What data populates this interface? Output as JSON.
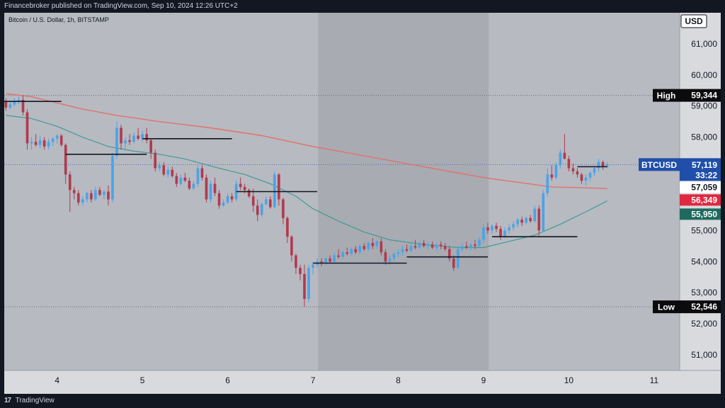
{
  "header": {
    "publisher_line": "Financebroker published on TradingView.com, Sep 10, 2024 12:26 UTC+2"
  },
  "footer": {
    "logo_text": "TradingView"
  },
  "colors": {
    "bull": "#4aa3e8",
    "bear": "#b03a4e",
    "ma_slow": "#e4716a",
    "ma_fast": "#3f9b94",
    "level_line": "#131722",
    "weekend_shade": "#a8abb2",
    "axis_bg": "#d8dade",
    "high_low_label_bg": "#0b0b0e",
    "btc_label_bg": "#1f4fa8",
    "ma_slow_label_bg": "#e02840",
    "ma_fast_label_bg": "#1f6a5e"
  },
  "chart_data": {
    "type": "candlestick",
    "symbol": "Bitcoin / U.S. Dollar, 1h, BITSTAMP",
    "currency": "USD",
    "xlabel": "",
    "ylabel": "",
    "ylim": [
      50500,
      62000
    ],
    "xlim": [
      3.38,
      11.3
    ],
    "yticks": [
      "51,000",
      "52,000",
      "53,000",
      "54,000",
      "55,000",
      "56,000",
      "57,000",
      "58,000",
      "59,000",
      "60,000",
      "61,000"
    ],
    "xticks": [
      "4",
      "5",
      "6",
      "7",
      "8",
      "9",
      "10",
      "11"
    ],
    "grid": false,
    "shaded_range": [
      7.06,
      9.06
    ],
    "high": {
      "label": "High",
      "value": 59344,
      "text": "59,344"
    },
    "low": {
      "label": "Low",
      "value": 52546,
      "text": "52,546"
    },
    "last_price": {
      "label": "BTCUSD",
      "value": 57119,
      "text": "57,119",
      "countdown": "33:22",
      "secondary": "57,059"
    },
    "ma_slow_last": {
      "value": 56349,
      "text": "56,349"
    },
    "ma_fast_last": {
      "value": 55950,
      "text": "55,950"
    },
    "candles": [
      [
        3.4,
        59150,
        59250,
        58850,
        58950
      ],
      [
        3.45,
        58950,
        59150,
        58900,
        59050
      ],
      [
        3.5,
        59050,
        59250,
        59000,
        59150
      ],
      [
        3.55,
        59150,
        59300,
        59050,
        59200
      ],
      [
        3.6,
        59200,
        59344,
        58700,
        58800
      ],
      [
        3.65,
        58800,
        58900,
        57600,
        57800
      ],
      [
        3.7,
        57800,
        58000,
        57600,
        57850
      ],
      [
        3.75,
        57850,
        58100,
        57700,
        57750
      ],
      [
        3.8,
        57750,
        58050,
        57650,
        57900
      ],
      [
        3.85,
        57900,
        58000,
        57600,
        57700
      ],
      [
        3.9,
        57700,
        57950,
        57600,
        57850
      ],
      [
        3.95,
        57850,
        58000,
        57700,
        57950
      ],
      [
        4.0,
        57950,
        58100,
        57800,
        58050
      ],
      [
        4.05,
        58050,
        58100,
        57700,
        57750
      ],
      [
        4.1,
        57750,
        57800,
        56500,
        56800
      ],
      [
        4.15,
        56800,
        56900,
        55600,
        56300
      ],
      [
        4.2,
        56300,
        56400,
        56000,
        56200
      ],
      [
        4.25,
        56200,
        56300,
        55800,
        55900
      ],
      [
        4.3,
        55900,
        56100,
        55800,
        56000
      ],
      [
        4.35,
        56000,
        56250,
        55900,
        56200
      ],
      [
        4.4,
        56200,
        56300,
        55900,
        56000
      ],
      [
        4.45,
        56000,
        56400,
        55950,
        56300
      ],
      [
        4.5,
        56300,
        56400,
        56100,
        56150
      ],
      [
        4.55,
        56150,
        56300,
        56000,
        56250
      ],
      [
        4.6,
        56250,
        56450,
        55800,
        56000
      ],
      [
        4.65,
        56000,
        57500,
        55900,
        57400
      ],
      [
        4.7,
        57400,
        58500,
        57300,
        58300
      ],
      [
        4.75,
        58300,
        58400,
        57600,
        57800
      ],
      [
        4.8,
        57800,
        58000,
        57600,
        57900
      ],
      [
        4.85,
        57900,
        58100,
        57750,
        57850
      ],
      [
        4.9,
        57850,
        58150,
        57800,
        58050
      ],
      [
        4.95,
        58050,
        58300,
        57900,
        57950
      ],
      [
        5.0,
        57950,
        58200,
        57850,
        58100
      ],
      [
        5.05,
        58100,
        58300,
        57800,
        57900
      ],
      [
        5.1,
        57900,
        57950,
        57300,
        57500
      ],
      [
        5.15,
        57500,
        57600,
        56900,
        57000
      ],
      [
        5.2,
        57000,
        57200,
        56900,
        57100
      ],
      [
        5.25,
        57100,
        57200,
        56750,
        56800
      ],
      [
        5.3,
        56800,
        57050,
        56700,
        56950
      ],
      [
        5.35,
        56950,
        57050,
        56700,
        56750
      ],
      [
        5.4,
        56750,
        56850,
        56400,
        56500
      ],
      [
        5.45,
        56500,
        56800,
        56450,
        56700
      ],
      [
        5.5,
        56700,
        56850,
        56550,
        56600
      ],
      [
        5.55,
        56600,
        56700,
        56300,
        56350
      ],
      [
        5.6,
        56350,
        56600,
        56300,
        56500
      ],
      [
        5.65,
        56500,
        57100,
        56400,
        57000
      ],
      [
        5.7,
        57000,
        57100,
        56600,
        56700
      ],
      [
        5.75,
        56700,
        56800,
        55900,
        56000
      ],
      [
        5.8,
        56000,
        56600,
        55900,
        56500
      ],
      [
        5.85,
        56500,
        56700,
        56100,
        56200
      ],
      [
        5.9,
        56200,
        56300,
        55700,
        55800
      ],
      [
        5.95,
        55800,
        56000,
        55750,
        55900
      ],
      [
        6.0,
        55900,
        56200,
        55850,
        56100
      ],
      [
        6.05,
        56100,
        56200,
        55900,
        56000
      ],
      [
        6.1,
        56000,
        56600,
        55950,
        56500
      ],
      [
        6.15,
        56500,
        56700,
        56300,
        56400
      ],
      [
        6.2,
        56400,
        56500,
        56200,
        56300
      ],
      [
        6.25,
        56300,
        56350,
        56050,
        56100
      ],
      [
        6.3,
        56100,
        56350,
        55600,
        55800
      ],
      [
        6.35,
        55800,
        56000,
        55300,
        55500
      ],
      [
        6.4,
        55500,
        55900,
        55450,
        55850
      ],
      [
        6.45,
        55850,
        56100,
        55800,
        56000
      ],
      [
        6.5,
        56000,
        56100,
        55700,
        55750
      ],
      [
        6.55,
        55750,
        56900,
        55700,
        56800
      ],
      [
        6.6,
        56800,
        56850,
        55800,
        56000
      ],
      [
        6.65,
        56000,
        56050,
        55200,
        55400
      ],
      [
        6.7,
        55400,
        55450,
        54600,
        54800
      ],
      [
        6.75,
        54800,
        54850,
        54000,
        54200
      ],
      [
        6.8,
        54200,
        54250,
        53600,
        53800
      ],
      [
        6.85,
        53800,
        53900,
        53400,
        53600
      ],
      [
        6.9,
        53600,
        53900,
        52546,
        52800
      ],
      [
        6.95,
        52800,
        53900,
        52700,
        53800
      ],
      [
        7.0,
        53800,
        54000,
        53600,
        53900
      ],
      [
        7.05,
        53900,
        54100,
        53800,
        54000
      ],
      [
        7.1,
        54000,
        54100,
        53850,
        53950
      ],
      [
        7.15,
        53950,
        54150,
        53900,
        54100
      ],
      [
        7.2,
        54100,
        54200,
        53950,
        54000
      ],
      [
        7.25,
        54000,
        54300,
        53950,
        54200
      ],
      [
        7.3,
        54200,
        54400,
        54100,
        54150
      ],
      [
        7.35,
        54150,
        54350,
        54100,
        54300
      ],
      [
        7.4,
        54300,
        54450,
        54200,
        54250
      ],
      [
        7.45,
        54250,
        54450,
        54200,
        54400
      ],
      [
        7.5,
        54400,
        54500,
        54250,
        54300
      ],
      [
        7.55,
        54300,
        54550,
        54250,
        54500
      ],
      [
        7.6,
        54500,
        54600,
        54350,
        54400
      ],
      [
        7.65,
        54400,
        54650,
        54350,
        54600
      ],
      [
        7.7,
        54600,
        54750,
        54400,
        54500
      ],
      [
        7.75,
        54500,
        54700,
        54400,
        54650
      ],
      [
        7.8,
        54650,
        54750,
        54200,
        54300
      ],
      [
        7.85,
        54300,
        54400,
        53900,
        54000
      ],
      [
        7.9,
        54000,
        54200,
        53900,
        54100
      ],
      [
        7.95,
        54100,
        54300,
        54000,
        54250
      ],
      [
        8.0,
        54250,
        54400,
        54150,
        54300
      ],
      [
        8.05,
        54300,
        54500,
        54200,
        54400
      ],
      [
        8.1,
        54400,
        54550,
        54300,
        54350
      ],
      [
        8.15,
        54350,
        54600,
        54300,
        54500
      ],
      [
        8.2,
        54500,
        54700,
        54400,
        54450
      ],
      [
        8.25,
        54450,
        54650,
        54400,
        54600
      ],
      [
        8.3,
        54600,
        54700,
        54450,
        54500
      ],
      [
        8.35,
        54500,
        54650,
        54400,
        54550
      ],
      [
        8.4,
        54550,
        54650,
        54400,
        54450
      ],
      [
        8.45,
        54450,
        54600,
        54350,
        54550
      ],
      [
        8.5,
        54550,
        54650,
        54400,
        54500
      ],
      [
        8.55,
        54500,
        54600,
        54350,
        54400
      ],
      [
        8.6,
        54400,
        54500,
        54000,
        54100
      ],
      [
        8.65,
        54100,
        54200,
        53700,
        53800
      ],
      [
        8.7,
        53800,
        54500,
        53750,
        54400
      ],
      [
        8.75,
        54400,
        54600,
        54300,
        54500
      ],
      [
        8.8,
        54500,
        54650,
        54400,
        54450
      ],
      [
        8.85,
        54450,
        54600,
        54350,
        54550
      ],
      [
        8.9,
        54550,
        54700,
        54400,
        54500
      ],
      [
        8.95,
        54500,
        54800,
        54450,
        54700
      ],
      [
        9.0,
        54700,
        55200,
        54600,
        55100
      ],
      [
        9.05,
        55100,
        55250,
        54900,
        55000
      ],
      [
        9.1,
        55000,
        55200,
        54900,
        55150
      ],
      [
        9.15,
        55150,
        55250,
        54950,
        55050
      ],
      [
        9.2,
        55050,
        55150,
        54700,
        54800
      ],
      [
        9.25,
        54800,
        55100,
        54750,
        55000
      ],
      [
        9.3,
        55000,
        55200,
        54900,
        55100
      ],
      [
        9.35,
        55100,
        55300,
        55000,
        55200
      ],
      [
        9.4,
        55200,
        55400,
        55100,
        55350
      ],
      [
        9.45,
        55350,
        55450,
        55150,
        55250
      ],
      [
        9.5,
        55250,
        55450,
        55200,
        55400
      ],
      [
        9.55,
        55400,
        55500,
        55250,
        55300
      ],
      [
        9.6,
        55300,
        55800,
        55250,
        55700
      ],
      [
        9.65,
        55700,
        55800,
        54800,
        55000
      ],
      [
        9.7,
        55000,
        56300,
        54950,
        56200
      ],
      [
        9.75,
        56200,
        57000,
        56100,
        56800
      ],
      [
        9.8,
        56800,
        57100,
        56600,
        56700
      ],
      [
        9.85,
        56700,
        57200,
        56650,
        57100
      ],
      [
        9.9,
        57100,
        57600,
        57000,
        57500
      ],
      [
        9.95,
        57500,
        58100,
        57300,
        57300
      ],
      [
        10.0,
        57300,
        57400,
        56900,
        57000
      ],
      [
        10.05,
        57000,
        57150,
        56800,
        56900
      ],
      [
        10.1,
        56900,
        57000,
        56700,
        56800
      ],
      [
        10.15,
        56800,
        56850,
        56500,
        56600
      ],
      [
        10.2,
        56600,
        56800,
        56450,
        56700
      ],
      [
        10.25,
        56700,
        56900,
        56600,
        56850
      ],
      [
        10.3,
        56850,
        57050,
        56750,
        57000
      ],
      [
        10.35,
        57000,
        57300,
        56900,
        57200
      ],
      [
        10.4,
        57200,
        57250,
        56950,
        57050
      ],
      [
        10.45,
        57050,
        57200,
        57000,
        57119
      ]
    ],
    "ma_slow": [
      [
        3.4,
        59400
      ],
      [
        3.7,
        59300
      ],
      [
        4.0,
        59100
      ],
      [
        4.3,
        58900
      ],
      [
        4.7,
        58700
      ],
      [
        5.2,
        58500
      ],
      [
        5.8,
        58300
      ],
      [
        6.4,
        58050
      ],
      [
        7.0,
        57700
      ],
      [
        7.5,
        57450
      ],
      [
        8.0,
        57200
      ],
      [
        8.5,
        56950
      ],
      [
        9.0,
        56700
      ],
      [
        9.4,
        56550
      ],
      [
        9.8,
        56400
      ],
      [
        10.1,
        56380
      ],
      [
        10.45,
        56349
      ]
    ],
    "ma_fast": [
      [
        3.4,
        58700
      ],
      [
        3.7,
        58600
      ],
      [
        4.0,
        58350
      ],
      [
        4.3,
        58000
      ],
      [
        4.6,
        57700
      ],
      [
        4.9,
        57550
      ],
      [
        5.2,
        57450
      ],
      [
        5.5,
        57300
      ],
      [
        5.9,
        57000
      ],
      [
        6.2,
        56800
      ],
      [
        6.5,
        56500
      ],
      [
        6.8,
        56100
      ],
      [
        7.0,
        55700
      ],
      [
        7.3,
        55300
      ],
      [
        7.6,
        54950
      ],
      [
        7.9,
        54700
      ],
      [
        8.3,
        54550
      ],
      [
        8.7,
        54450
      ],
      [
        9.0,
        54450
      ],
      [
        9.3,
        54650
      ],
      [
        9.6,
        54850
      ],
      [
        9.9,
        55200
      ],
      [
        10.2,
        55600
      ],
      [
        10.45,
        55950
      ]
    ],
    "levels": [
      {
        "y": 59150,
        "x1": 3.38,
        "x2": 4.05
      },
      {
        "y": 57450,
        "x1": 4.1,
        "x2": 5.05
      },
      {
        "y": 57950,
        "x1": 5.0,
        "x2": 6.05
      },
      {
        "y": 56250,
        "x1": 6.1,
        "x2": 7.05
      },
      {
        "y": 53950,
        "x1": 7.0,
        "x2": 8.1
      },
      {
        "y": 54150,
        "x1": 8.1,
        "x2": 9.05
      },
      {
        "y": 54800,
        "x1": 9.1,
        "x2": 10.1
      },
      {
        "y": 57050,
        "x1": 10.1,
        "x2": 10.45
      }
    ]
  }
}
